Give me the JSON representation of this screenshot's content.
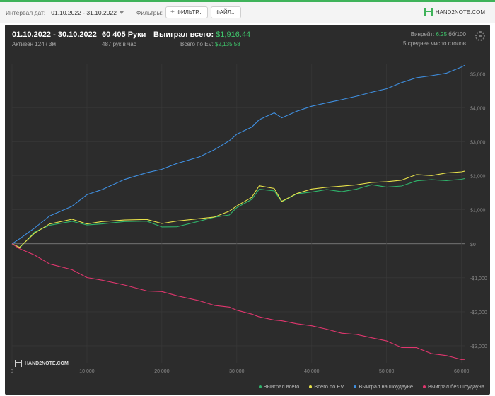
{
  "toolbar": {
    "date_label": "Интервал дат:",
    "date_range": "01.10.2022 - 31.10.2022",
    "filters_label": "Фильтры:",
    "filter_button": "ФИЛЬТР...",
    "file_button": "ФАЙЛ...",
    "logo_text": "HAND2NOTE.COM"
  },
  "summary": {
    "date_range": "01.10.2022 - 30.10.2022",
    "active": "Активен 124ч 3м",
    "hands": "60 405 Руки",
    "hands_per_hour": "487 рук в час",
    "won_label": "Выиграл всего:",
    "won_value": "$1,916.44",
    "ev_label": "Всего по EV:",
    "ev_value": "$2,135.58",
    "winrate_label": "Винрейт:",
    "winrate_value": "6.25",
    "winrate_unit": "бб/100",
    "tables": "5 среднее число столов"
  },
  "watermark": "HAND2NOTE.COM",
  "colors": {
    "won": "#2fb36b",
    "ev": "#e6e04a",
    "showdown": "#3f8fe0",
    "non_showdown": "#e0366e",
    "accent": "#3fc46b"
  },
  "chart_data": {
    "type": "line",
    "xlabel": "",
    "ylabel": "",
    "xlim": [
      0,
      60405
    ],
    "ylim": [
      -3500,
      5300
    ],
    "x_ticks": [
      0,
      10000,
      20000,
      30000,
      40000,
      50000,
      60000
    ],
    "x_tick_labels": [
      "0",
      "10 000",
      "20 000",
      "30 000",
      "40 000",
      "50 000",
      "60 000"
    ],
    "y_ticks": [
      5000,
      4000,
      3000,
      2000,
      1000,
      0,
      -1000,
      -2000,
      -3000
    ],
    "y_tick_labels": [
      "$5,000",
      "$4,000",
      "$3,000",
      "$2,000",
      "$1,000",
      "$0",
      "-$1,000",
      "-$2,000",
      "-$3,000"
    ],
    "grid": true,
    "legend_position": "bottom-right",
    "x": [
      0,
      1000,
      3000,
      5000,
      8000,
      10000,
      12000,
      15000,
      18000,
      20000,
      22000,
      25000,
      27000,
      29000,
      30000,
      32000,
      33000,
      35000,
      36000,
      38000,
      40000,
      42000,
      44000,
      46000,
      48000,
      50000,
      52000,
      54000,
      56000,
      58000,
      60000,
      60405
    ],
    "series": [
      {
        "name": "Выиграл всего",
        "color": "#2fb36b",
        "values": [
          0,
          -80,
          300,
          550,
          650,
          550,
          600,
          620,
          650,
          500,
          550,
          700,
          750,
          900,
          1100,
          1300,
          1650,
          1550,
          1250,
          1450,
          1550,
          1600,
          1550,
          1600,
          1700,
          1650,
          1700,
          1800,
          1850,
          1850,
          1950,
          1920
        ]
      },
      {
        "name": "Всего по EV",
        "color": "#e6e04a",
        "values": [
          0,
          -80,
          320,
          580,
          700,
          620,
          680,
          700,
          720,
          600,
          620,
          750,
          800,
          950,
          1150,
          1350,
          1700,
          1600,
          1300,
          1500,
          1650,
          1700,
          1650,
          1750,
          1850,
          1800,
          1900,
          2000,
          2050,
          2050,
          2100,
          2135
        ]
      },
      {
        "name": "Выиграл на шоудауне",
        "color": "#3f8fe0",
        "values": [
          0,
          100,
          450,
          800,
          1150,
          1450,
          1600,
          1900,
          2100,
          2200,
          2350,
          2600,
          2800,
          3000,
          3250,
          3450,
          3700,
          3850,
          3750,
          3900,
          4050,
          4150,
          4200,
          4300,
          4450,
          4600,
          4750,
          4850,
          4950,
          5050,
          5150,
          5250
        ]
      },
      {
        "name": "Выиграл без шоудауна",
        "color": "#e0366e",
        "values": [
          0,
          -150,
          -350,
          -550,
          -750,
          -950,
          -1050,
          -1250,
          -1350,
          -1450,
          -1550,
          -1650,
          -1800,
          -1900,
          -2000,
          -2100,
          -2150,
          -2250,
          -2300,
          -2400,
          -2450,
          -2500,
          -2600,
          -2700,
          -2800,
          -2900,
          -3000,
          -3100,
          -3200,
          -3300,
          -3380,
          -3400
        ]
      }
    ]
  }
}
